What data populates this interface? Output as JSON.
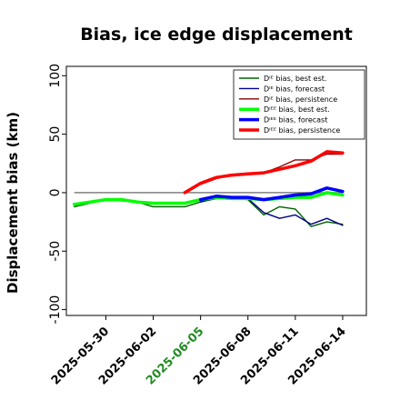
{
  "chart_data": {
    "type": "line",
    "title": "Bias, ice edge displacement",
    "xlabel": "",
    "ylabel": "Displacement bias (km)",
    "ylim": [
      -105,
      108
    ],
    "yticks": [
      -100,
      -50,
      0,
      50,
      100
    ],
    "xlim": [
      "2025-05-27T12",
      "2025-06-15T12"
    ],
    "xticks": [
      {
        "date": "2025-05-30",
        "color": "#000000"
      },
      {
        "date": "2025-06-02",
        "color": "#000000"
      },
      {
        "date": "2025-06-05",
        "color": "#228b22"
      },
      {
        "date": "2025-06-08",
        "color": "#000000"
      },
      {
        "date": "2025-06-11",
        "color": "#000000"
      },
      {
        "date": "2025-06-14",
        "color": "#000000"
      }
    ],
    "reference_line": {
      "y": 0,
      "color": "#808080"
    },
    "legend_position": "top-right",
    "series": [
      {
        "name": "Dᴵᴱ bias, best est.",
        "color": "#006400",
        "style": "thin",
        "x": [
          "2025-05-28",
          "2025-05-29",
          "2025-05-30",
          "2025-05-31",
          "2025-06-01",
          "2025-06-02",
          "2025-06-03",
          "2025-06-04",
          "2025-06-05",
          "2025-06-06",
          "2025-06-07",
          "2025-06-08",
          "2025-06-09",
          "2025-06-10",
          "2025-06-11",
          "2025-06-12",
          "2025-06-13",
          "2025-06-14"
        ],
        "y": [
          -12,
          -9,
          -6,
          -7,
          -8,
          -12,
          -12,
          -12,
          -8,
          -5,
          -5,
          -6,
          -19,
          -12,
          -14,
          -29,
          -25,
          -27
        ]
      },
      {
        "name": "Dᴵᴱ bias, forecast",
        "color": "#00008b",
        "style": "thin",
        "x": [
          "2025-06-05",
          "2025-06-06",
          "2025-06-07",
          "2025-06-08",
          "2025-06-09",
          "2025-06-10",
          "2025-06-11",
          "2025-06-12",
          "2025-06-13",
          "2025-06-14"
        ],
        "y": [
          -8,
          -4,
          -5,
          -5,
          -17,
          -22,
          -19,
          -27,
          -22,
          -28
        ]
      },
      {
        "name": "Dᴵᴱ bias, persistence",
        "color": "#8b0000",
        "style": "thin",
        "x": [
          "2025-06-05",
          "2025-06-06",
          "2025-06-07",
          "2025-06-08",
          "2025-06-09",
          "2025-06-10",
          "2025-06-11",
          "2025-06-12",
          "2025-06-13",
          "2025-06-14"
        ],
        "y": [
          7,
          12,
          15,
          16,
          17,
          22,
          28,
          28,
          33,
          33
        ]
      },
      {
        "name": "Dᴵᴱᴱ bias, best est.",
        "color": "#00ff00",
        "style": "thick",
        "x": [
          "2025-05-28",
          "2025-05-29",
          "2025-05-30",
          "2025-05-31",
          "2025-06-01",
          "2025-06-02",
          "2025-06-03",
          "2025-06-04",
          "2025-06-05",
          "2025-06-06",
          "2025-06-07",
          "2025-06-08",
          "2025-06-09",
          "2025-06-10",
          "2025-06-11",
          "2025-06-12",
          "2025-06-13",
          "2025-06-14"
        ],
        "y": [
          -10,
          -8,
          -6,
          -6,
          -8,
          -9,
          -9,
          -9,
          -6,
          -4,
          -5,
          -5,
          -6,
          -5,
          -4,
          -4,
          0,
          -2
        ]
      },
      {
        "name": "Dᴵᴱᴱ bias, forecast",
        "color": "#0000ff",
        "style": "thick",
        "x": [
          "2025-06-05",
          "2025-06-06",
          "2025-06-07",
          "2025-06-08",
          "2025-06-09",
          "2025-06-10",
          "2025-06-11",
          "2025-06-12",
          "2025-06-13",
          "2025-06-14"
        ],
        "y": [
          -6,
          -3,
          -4,
          -4,
          -6,
          -4,
          -2,
          -1,
          4,
          1
        ]
      },
      {
        "name": "Dᴵᴱᴱ bias, persistence",
        "color": "#ff0000",
        "style": "thick",
        "x": [
          "2025-06-04",
          "2025-06-05",
          "2025-06-06",
          "2025-06-07",
          "2025-06-08",
          "2025-06-09",
          "2025-06-10",
          "2025-06-11",
          "2025-06-12",
          "2025-06-13",
          "2025-06-14"
        ],
        "y": [
          0,
          8,
          13,
          15,
          16,
          17,
          20,
          23,
          27,
          35,
          34
        ]
      }
    ]
  }
}
